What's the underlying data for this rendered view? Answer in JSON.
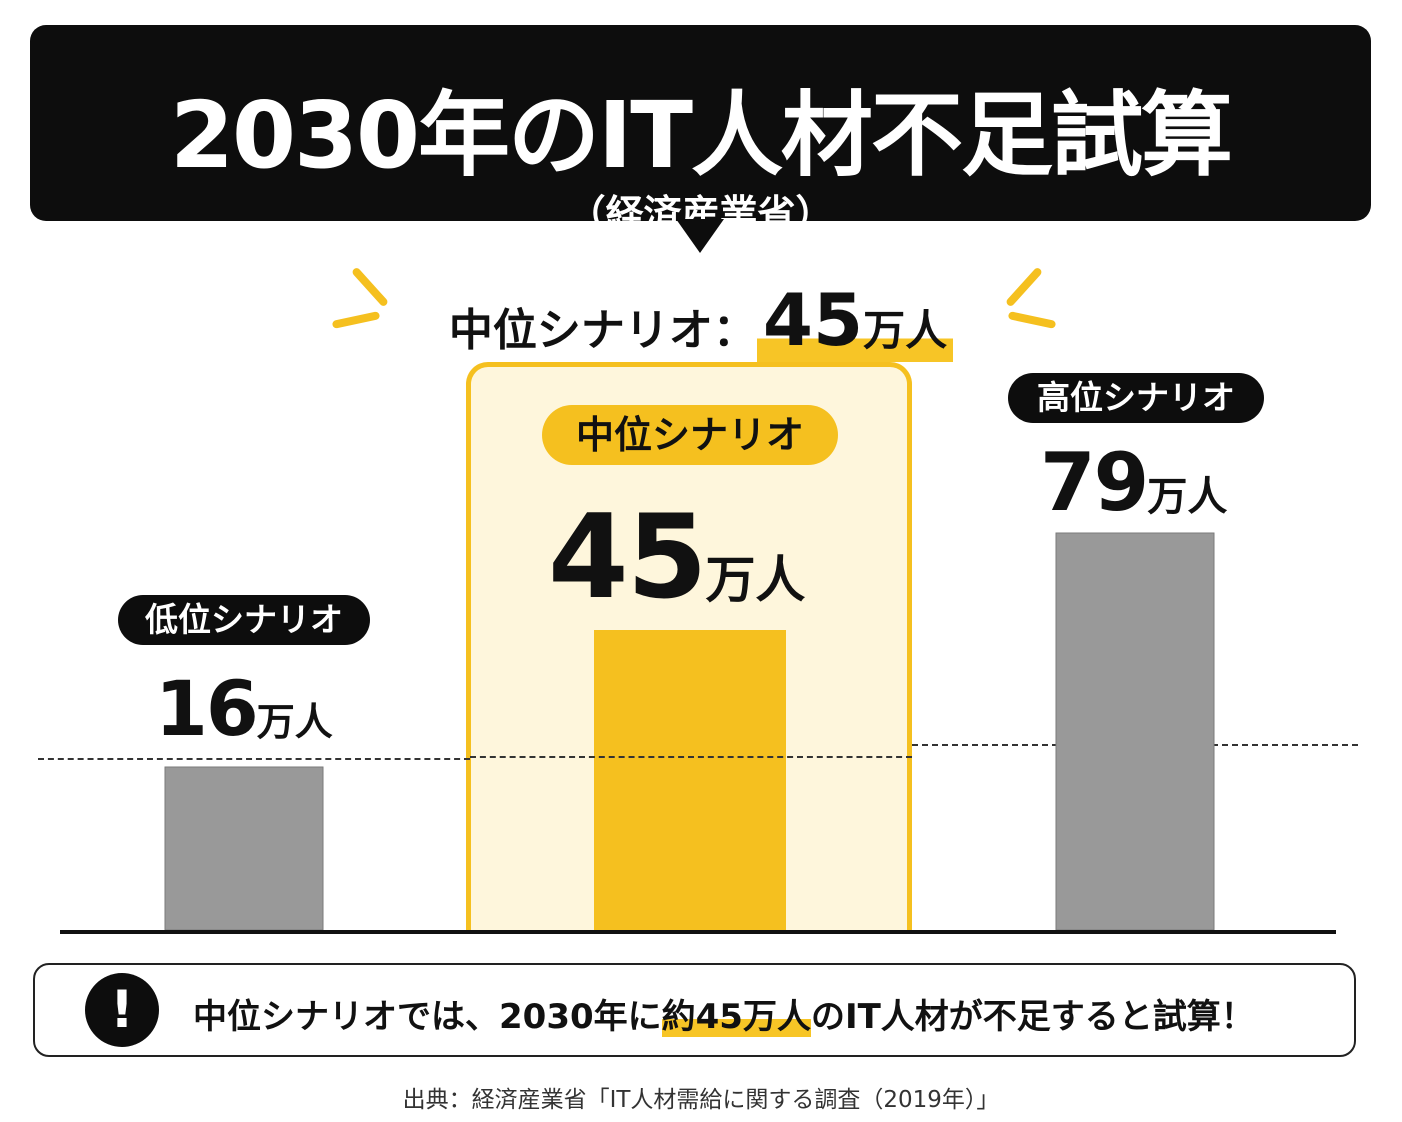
{
  "header": {
    "title": "2030年のIT人材不足試算",
    "subtitle": "（経済産業省）"
  },
  "headline": {
    "label": "中位シナリオ：",
    "value": "45",
    "unit": "万人"
  },
  "chart_data": {
    "type": "bar",
    "categories": [
      "低位シナリオ",
      "中位シナリオ",
      "高位シナリオ"
    ],
    "values": [
      16,
      45,
      79
    ],
    "value_labels": [
      "16",
      "45",
      "79"
    ],
    "unit": "万人",
    "highlighted": "中位シナリオ",
    "colors": {
      "default": "#999999",
      "highlight": "#f5c01f"
    }
  },
  "note": {
    "icon": "exclamation-icon",
    "text_before": "中位シナリオでは、2030年に",
    "highlight": "約45万人",
    "text_after": "のIT人材が不足すると試算！"
  },
  "source": "出典：経済産業省「IT人材需給に関する調査（2019年）」"
}
